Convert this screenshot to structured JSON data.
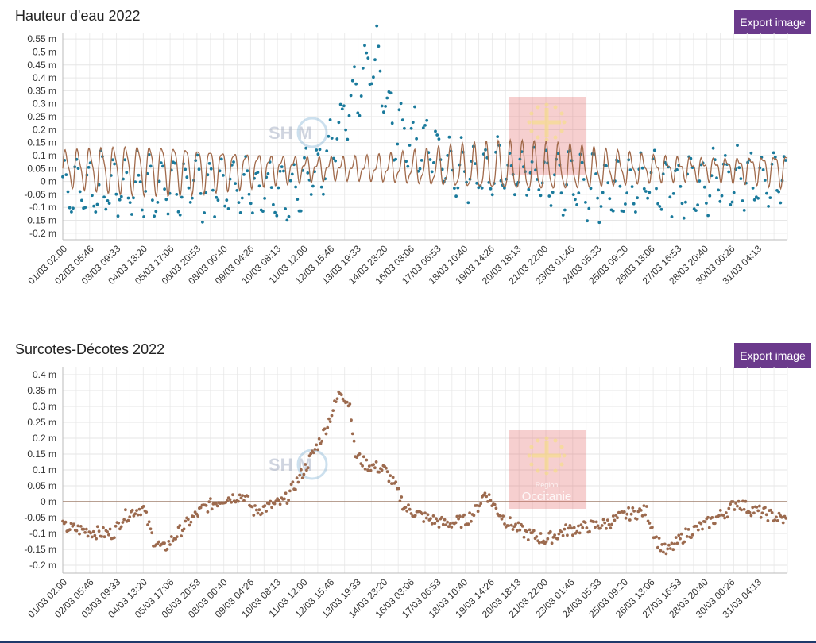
{
  "charts": [
    {
      "title": "Hauteur d'eau 2022",
      "export_label": "Export image"
    },
    {
      "title": "Surcotes-Décotes 2022",
      "export_label": "Export image"
    }
  ],
  "watermarks": {
    "shom": "SH M",
    "region_small": "Région",
    "region_big": "Occitanie"
  },
  "chart_data": [
    {
      "type": "scatter",
      "title": "Hauteur d'eau 2022",
      "xlabel": "",
      "ylabel": "",
      "ylim": [
        -0.225,
        0.575
      ],
      "yticks": [
        "-0.2 m",
        "-0.15 m",
        "-0.1 m",
        "-0.05 m",
        "0 m",
        "0.05 m",
        "0.1 m",
        "0.15 m",
        "0.2 m",
        "0.25 m",
        "0.3 m",
        "0.35 m",
        "0.4 m",
        "0.45 m",
        "0.5 m",
        "0.55 m"
      ],
      "ytick_values": [
        -0.2,
        -0.15,
        -0.1,
        -0.05,
        0,
        0.05,
        0.1,
        0.15,
        0.2,
        0.25,
        0.3,
        0.35,
        0.4,
        0.45,
        0.5,
        0.55
      ],
      "xticks": [
        "01/03 02:00",
        "02/03 05:46",
        "03/03 09:33",
        "04/03 13:20",
        "05/03 17:06",
        "06/03 20:53",
        "08/03 00:40",
        "09/03 04:26",
        "10/03 08:13",
        "11/03 12:00",
        "12/03 15:46",
        "13/03 19:33",
        "14/03 23:20",
        "16/03 03:06",
        "17/03 06:53",
        "18/03 10:40",
        "19/03 14:26",
        "20/03 18:13",
        "21/03 22:00",
        "23/03 01:46",
        "24/03 05:33",
        "25/03 09:20",
        "26/03 13:06",
        "27/03 16:53",
        "28/03 20:40",
        "30/03 00:26",
        "31/03 04:13"
      ],
      "xlim_days": [
        0,
        31.25
      ],
      "grid": true,
      "legend": "none",
      "series": [
        {
          "kind": "points",
          "color": "#1a7a9c",
          "envelope": [
            [
              0,
              -0.02
            ],
            [
              10,
              -0.02
            ],
            [
              11,
              0.05
            ],
            [
              12.5,
              0.3
            ],
            [
              13.5,
              0.48
            ],
            [
              14.2,
              0.2
            ],
            [
              15,
              0.18
            ],
            [
              16,
              0.12
            ],
            [
              17,
              0.05
            ],
            [
              20,
              0.03
            ],
            [
              23,
              -0.02
            ],
            [
              31.25,
              0.02
            ]
          ],
          "amplitude": 0.1
        },
        {
          "kind": "line",
          "color": "#a0694a",
          "envelope": [
            [
              0,
              0.05
            ],
            [
              31.25,
              0.05
            ]
          ],
          "amplitude": 0.09
        }
      ]
    },
    {
      "type": "scatter",
      "title": "Surcotes-Décotes 2022",
      "xlabel": "",
      "ylabel": "",
      "ylim": [
        -0.225,
        0.425
      ],
      "yticks": [
        "-0.2 m",
        "-0.15 m",
        "-0.1 m",
        "-0.05 m",
        "0 m",
        "0.05 m",
        "0.1 m",
        "0.15 m",
        "0.2 m",
        "0.25 m",
        "0.3 m",
        "0.35 m",
        "0.4 m"
      ],
      "ytick_values": [
        -0.2,
        -0.15,
        -0.1,
        -0.05,
        0,
        0.05,
        0.1,
        0.15,
        0.2,
        0.25,
        0.3,
        0.35,
        0.4
      ],
      "xticks": [
        "01/03 02:00",
        "02/03 05:46",
        "03/03 09:33",
        "04/03 13:20",
        "05/03 17:06",
        "06/03 20:53",
        "08/03 00:40",
        "09/03 04:26",
        "10/03 08:13",
        "11/03 12:00",
        "12/03 15:46",
        "13/03 19:33",
        "14/03 23:20",
        "16/03 03:06",
        "17/03 06:53",
        "18/03 10:40",
        "19/03 14:26",
        "20/03 18:13",
        "21/03 22:00",
        "23/03 01:46",
        "24/03 05:33",
        "25/03 09:20",
        "26/03 13:06",
        "27/03 16:53",
        "28/03 20:40",
        "30/03 00:26",
        "31/03 04:13"
      ],
      "xlim_days": [
        0,
        31.25
      ],
      "grid": true,
      "legend": "none",
      "baseline": 0,
      "series": [
        {
          "kind": "points",
          "color": "#9c6a4e",
          "curve": [
            [
              0,
              -0.08
            ],
            [
              1,
              -0.09
            ],
            [
              2,
              -0.1
            ],
            [
              2.5,
              -0.1
            ],
            [
              3,
              -0.05
            ],
            [
              3.5,
              -0.03
            ],
            [
              4,
              -0.02
            ],
            [
              4.5,
              -0.12
            ],
            [
              5,
              -0.15
            ],
            [
              6,
              -0.08
            ],
            [
              7,
              -0.02
            ],
            [
              8,
              0.01
            ],
            [
              9,
              0.02
            ],
            [
              9.5,
              -0.03
            ],
            [
              10,
              -0.02
            ],
            [
              11,
              0.0
            ],
            [
              12,
              0.1
            ],
            [
              13,
              0.22
            ],
            [
              13.8,
              0.35
            ],
            [
              14.3,
              0.3
            ],
            [
              14.5,
              0.15
            ],
            [
              15,
              0.12
            ],
            [
              16,
              0.1
            ],
            [
              16.5,
              0.05
            ],
            [
              17,
              -0.02
            ],
            [
              18,
              -0.05
            ],
            [
              19,
              -0.07
            ],
            [
              20,
              -0.06
            ],
            [
              20.5,
              -0.03
            ],
            [
              21,
              0.03
            ],
            [
              21.5,
              -0.02
            ],
            [
              22,
              -0.06
            ],
            [
              23,
              -0.1
            ],
            [
              24,
              -0.12
            ],
            [
              25,
              -0.09
            ],
            [
              26,
              -0.08
            ],
            [
              27,
              -0.07
            ],
            [
              28,
              -0.04
            ],
            [
              29,
              -0.03
            ],
            [
              29.5,
              -0.12
            ],
            [
              30,
              -0.16
            ],
            [
              31,
              -0.1
            ],
            [
              32,
              -0.07
            ],
            [
              33,
              -0.03
            ],
            [
              33.5,
              0.0
            ],
            [
              34,
              -0.02
            ],
            [
              35,
              -0.04
            ],
            [
              36,
              -0.06
            ]
          ]
        }
      ]
    }
  ]
}
